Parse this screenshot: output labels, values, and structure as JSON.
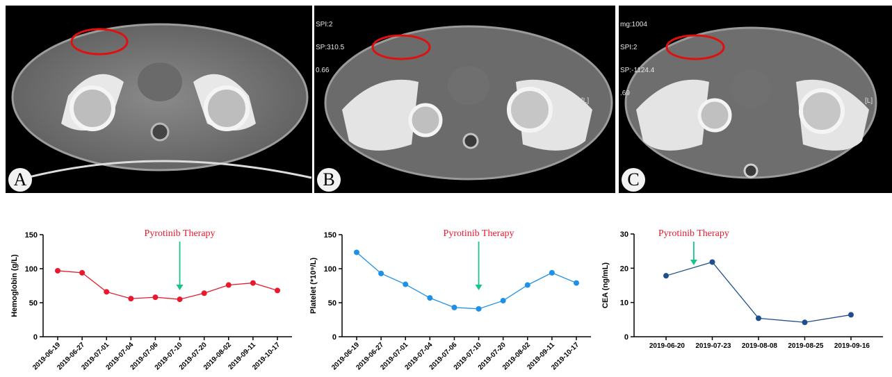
{
  "panels": [
    {
      "letter": "A",
      "overlay": []
    },
    {
      "letter": "B",
      "overlay": [
        "SPI:2",
        "SP:310.5",
        "0.66"
      ],
      "side_label": "[L]"
    },
    {
      "letter": "C",
      "overlay": [
        "mg:1004",
        "SPI:2",
        "SP:-1124.4",
        ".69"
      ],
      "side_label": "[L]"
    }
  ],
  "colors": {
    "hemoglobin": "#e8192c",
    "platelet": "#1e90e8",
    "cea": "#1f4e8c",
    "therapy_text": "#e8192c",
    "arrow": "#19c48a",
    "circle": "#e01010"
  },
  "chart_data": [
    {
      "type": "line",
      "ylabel": "Hemoglobin (g/L)",
      "ylim": [
        0,
        150
      ],
      "yticks": [
        "0",
        "50",
        "100",
        "150"
      ],
      "categories": [
        "2019-06-19",
        "2019-06-27",
        "2019-07-01",
        "2019-07-04",
        "2019-07-06",
        "2019-07-10",
        "2019-07-20",
        "2019-08-02",
        "2019-09-11",
        "2019-10-17"
      ],
      "values": [
        97,
        94,
        66,
        56,
        58,
        55,
        64,
        76,
        79,
        68
      ],
      "annotation": {
        "text": "Pyrotinib Therapy",
        "at_index": 5
      }
    },
    {
      "type": "line",
      "ylabel": "Platelet (*10⁹/L)",
      "ylim": [
        0,
        150
      ],
      "yticks": [
        "0",
        "50",
        "100",
        "150"
      ],
      "categories": [
        "2019-06-19",
        "2019-06-27",
        "2019-07-01",
        "2019-07-04",
        "2019-07-06",
        "2019-07-10",
        "2019-07-20",
        "2019-08-02",
        "2019-09-11",
        "2019-10-17"
      ],
      "values": [
        124,
        93,
        77,
        57,
        43,
        41,
        53,
        76,
        94,
        79
      ],
      "annotation": {
        "text": "Pyrotinib Therapy",
        "at_index": 5
      }
    },
    {
      "type": "line",
      "ylabel": "CEA (ng/mL)",
      "ylim": [
        0,
        30
      ],
      "yticks": [
        "0",
        "10",
        "20",
        "30"
      ],
      "categories": [
        "2019-06-20",
        "2019-07-23",
        "2019-08-08",
        "2019-08-25",
        "2019-09-16"
      ],
      "values": [
        17.8,
        21.8,
        5.4,
        4.2,
        6.4
      ],
      "annotation": {
        "text": "Pyrotinib Therapy",
        "at_index": 0.6
      }
    }
  ]
}
